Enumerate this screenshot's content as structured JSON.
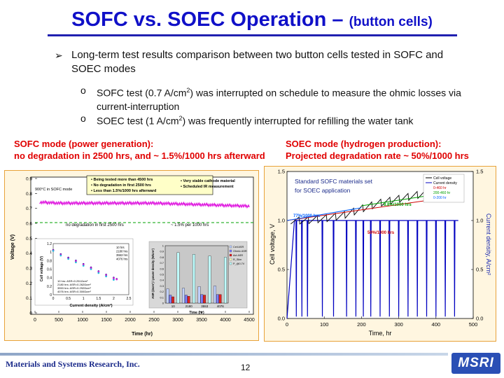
{
  "title": {
    "main": "SOFC vs. SOEC Operation – ",
    "sub": "(button cells)"
  },
  "bullet": "Long-term test results comparison between two button cells tested in SOFC and SOEC modes",
  "subbullets": [
    {
      "pre": "SOFC test (0.7 A/cm",
      "sup": "2",
      "post": ") was interrupted on schedule to measure the ohmic losses via current-interruption"
    },
    {
      "pre": "SOEC test (1 A/cm",
      "sup": "2",
      "post": ") was frequently interrupted for refilling the water tank"
    }
  ],
  "sofc": {
    "heading1": "SOFC mode (power generation):",
    "heading2": "no degradation in 2500 hrs, and ~ 1.5%/1000 hrs afterward",
    "legend_box": [
      "Being tested more than 4500 hrs",
      "No degradation in first 2500 hrs",
      "Less than 1.5%/1000 hrs afterward"
    ],
    "legend_box2": [
      "Very stable cathode material",
      "Scheduled IR measurement"
    ],
    "mode_label": "900°C in SOFC mode",
    "ann_left": "no degradation in first 2500 hrs",
    "ann_right": "~ 1.5% per 1000 hrs",
    "xlabel": "Time (hr)",
    "ylabel": "Voltage (V)",
    "inset1": {
      "xlabel": "Current density (A/cm²)",
      "ylabel": "Cell voltage (V)",
      "legend": [
        "10 hrs",
        "2180 hrs",
        "3553 hrs",
        "4076 hrs"
      ],
      "notes": [
        "10 hrs: ASR=0.251Ωcm²",
        "2180 hrs: ASR=0.262Ωcm²",
        "3553 hrs: ASR=0.292Ωcm²",
        "4076 hrs: ASR=0.300Ωcm²"
      ]
    },
    "inset2": {
      "xlabel": "Time (hr)",
      "ylabel": "ASR (Ωcm²) / power density (W/cm²)",
      "legend": [
        "Cell ASR",
        "Ohmic ASR",
        "Act ASR",
        "R_Slim",
        "P_@0.7V"
      ]
    }
  },
  "soec": {
    "heading1": "SOEC mode (hydrogen production):",
    "heading2": "Projected degradation rate ~ 50%/1000 hrs",
    "note": [
      "Standard SOFC materials set",
      "for SOEC application"
    ],
    "legend": [
      "Cell voltage",
      "Current density",
      "0-460 hr",
      "200-460 hr",
      "0-200 hr"
    ],
    "ann1": "8.8%/1000 hrs",
    "ann2": "77%/1000 hrs",
    "ann3": "50%/1000 hrs",
    "xlabel": "Time, hr",
    "ylabel_left": "Cell voltage, V",
    "ylabel_right": "Current density, A/cm²"
  },
  "chart_data": [
    {
      "type": "line",
      "title": "",
      "xlabel": "Time (hr)",
      "ylabel": "Voltage (V)",
      "xlim": [
        0,
        4500
      ],
      "ylim": [
        0,
        0.9
      ],
      "xticks": [
        0,
        500,
        1000,
        1500,
        2000,
        2500,
        3000,
        3500,
        4000,
        4500
      ],
      "yticks": [
        0,
        0.1,
        0.2,
        0.3,
        0.4,
        0.5,
        0.6,
        0.7,
        0.8,
        0.9
      ],
      "series": [
        {
          "name": "",
          "x": [
            0,
            200,
            500,
            1000,
            1500,
            2000,
            2500,
            3000,
            3500,
            4000,
            4500
          ],
          "y": [
            0.74,
            0.74,
            0.735,
            0.735,
            0.735,
            0.735,
            0.735,
            0.73,
            0.725,
            0.72,
            0.715
          ]
        }
      ]
    },
    {
      "type": "line",
      "title": "",
      "xlabel": "Current density (A/cm²)",
      "ylabel": "Cell voltage (V)",
      "xlim": [
        0,
        2.5
      ],
      "ylim": [
        0,
        1.2
      ],
      "xticks": [
        0,
        0.5,
        1,
        1.5,
        2,
        2.5
      ],
      "yticks": [
        0,
        0.2,
        0.4,
        0.6,
        0.8,
        1,
        1.2
      ],
      "series": [
        {
          "name": "10 hrs",
          "x": [
            0,
            0.25,
            0.5,
            0.75,
            1,
            1.25,
            1.5,
            1.75,
            2,
            2.1
          ],
          "y": [
            1.05,
            0.95,
            0.87,
            0.8,
            0.72,
            0.64,
            0.55,
            0.47,
            0.4,
            0.37
          ]
        },
        {
          "name": "2180 hrs",
          "x": [
            0,
            0.25,
            0.5,
            0.75,
            1,
            1.25,
            1.5,
            1.75,
            2,
            2.1
          ],
          "y": [
            1.04,
            0.94,
            0.86,
            0.79,
            0.71,
            0.63,
            0.54,
            0.46,
            0.39,
            0.36
          ]
        },
        {
          "name": "3553 hrs",
          "x": [
            0,
            0.25,
            0.5,
            0.75,
            1,
            1.25,
            1.5,
            1.75,
            2
          ],
          "y": [
            1.04,
            0.93,
            0.85,
            0.77,
            0.69,
            0.61,
            0.52,
            0.44,
            0.36
          ]
        },
        {
          "name": "4076 hrs",
          "x": [
            0,
            0.25,
            0.5,
            0.75,
            1,
            1.25,
            1.5,
            1.75,
            2
          ],
          "y": [
            1.03,
            0.92,
            0.84,
            0.76,
            0.68,
            0.6,
            0.51,
            0.43,
            0.35
          ]
        }
      ]
    },
    {
      "type": "bar",
      "title": "",
      "xlabel": "Time (hr)",
      "ylabel": "ASR (Ωcm²) / power density (W/cm²)",
      "categories": [
        "10",
        "2180",
        "3553",
        "4076"
      ],
      "ylim": [
        0,
        1
      ],
      "yticks": [
        0,
        0.1,
        0.2,
        0.3,
        0.4,
        0.5,
        0.6,
        0.7,
        0.8,
        0.9,
        1
      ],
      "series": [
        {
          "name": "Cell ASR",
          "values": [
            0.25,
            0.26,
            0.29,
            0.3
          ]
        },
        {
          "name": "Ohmic ASR",
          "values": [
            0.14,
            0.14,
            0.15,
            0.15
          ]
        },
        {
          "name": "Act ASR",
          "values": [
            0.11,
            0.12,
            0.14,
            0.15
          ]
        },
        {
          "name": "R_Slim",
          "values": [
            0.0,
            0.0,
            0.0,
            0.0
          ]
        },
        {
          "name": "P_@0.7V",
          "values": [
            0.88,
            0.85,
            0.82,
            0.8
          ]
        }
      ]
    },
    {
      "type": "line",
      "title": "",
      "xlabel": "Time, hr",
      "ylabel": "Cell voltage, V",
      "xlim": [
        0,
        500
      ],
      "ylim": [
        0,
        1.5
      ],
      "xticks": [
        0,
        100,
        200,
        300,
        400,
        500
      ],
      "yticks": [
        0.0,
        0.5,
        1.0,
        1.5
      ],
      "y2label": "Current density, A/cm²",
      "y2lim": [
        0,
        1.5
      ],
      "y2ticks": [
        0.0,
        0.5,
        1.0,
        1.5
      ],
      "series": [
        {
          "name": "Cell voltage",
          "x": [
            10,
            50,
            100,
            150,
            200,
            250,
            300,
            350,
            400,
            450,
            460
          ],
          "y": [
            1.0,
            1.0,
            1.02,
            1.05,
            1.12,
            1.18,
            1.22,
            1.26,
            1.3,
            1.33,
            1.33
          ]
        },
        {
          "name": "Current density",
          "x": [
            0,
            20,
            460
          ],
          "y": [
            0,
            1.0,
            1.0
          ]
        }
      ]
    }
  ]
}
